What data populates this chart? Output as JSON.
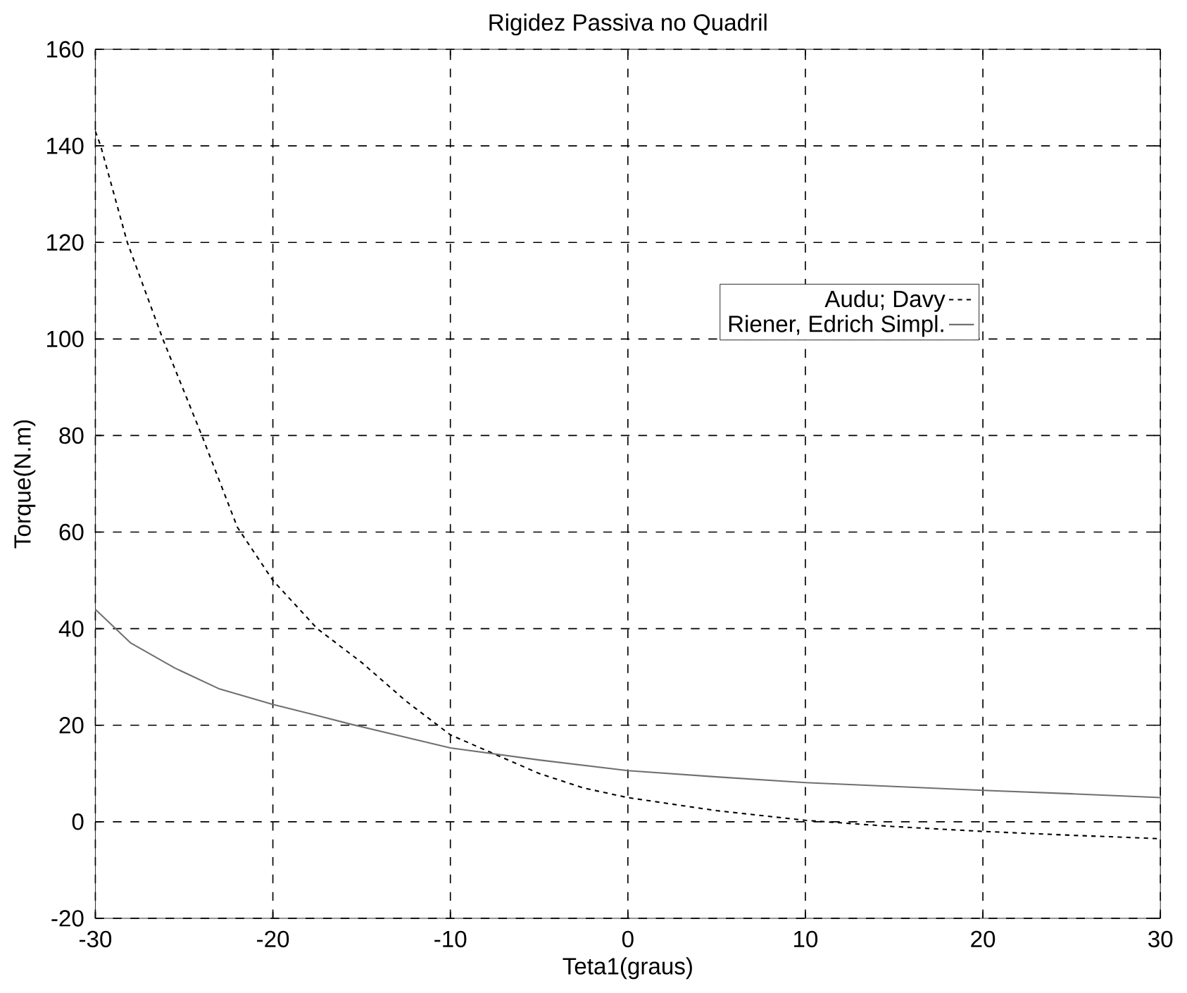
{
  "chart_data": {
    "type": "line",
    "title": "Rigidez Passiva no Quadril",
    "xlabel": "Teta1(graus)",
    "ylabel": "Torque(N.m)",
    "xlim": [
      -30,
      30
    ],
    "xticks": [
      -30,
      -20,
      -10,
      0,
      10,
      20,
      30
    ],
    "ylim": [
      -20,
      160
    ],
    "yticks": [
      -20,
      0,
      20,
      40,
      60,
      80,
      100,
      120,
      140,
      160
    ],
    "grid": true,
    "legend": "top right",
    "marker": "none",
    "series": [
      {
        "name": "Audu; Davy",
        "color": "#000000",
        "line_style": "dashed",
        "x": [
          -30,
          -29.7,
          -28.2,
          -26.2,
          -24,
          -22,
          -20,
          -17.5,
          -15,
          -12.5,
          -10,
          -7.5,
          -5,
          -2.5,
          0,
          5,
          10,
          15,
          20,
          25,
          30
        ],
        "values": [
          143,
          140,
          120,
          100,
          80,
          61,
          50,
          40,
          33,
          25,
          18,
          14,
          10,
          7,
          5,
          2.3,
          0.3,
          -1,
          -2,
          -2.8,
          -3.5
        ]
      },
      {
        "name": "Riener, Edrich Simpl.",
        "color": "#707070",
        "line_style": "solid",
        "x": [
          -30,
          -28,
          -25.5,
          -23,
          -20,
          -17.5,
          -15.6,
          -12.5,
          -10,
          -5,
          0,
          5,
          10,
          15,
          20,
          25,
          30
        ],
        "values": [
          44,
          37,
          31.8,
          27.5,
          24.3,
          22,
          20.2,
          17.5,
          15.3,
          12.8,
          10.6,
          9.3,
          8.1,
          7.3,
          6.5,
          5.8,
          5
        ]
      }
    ]
  }
}
